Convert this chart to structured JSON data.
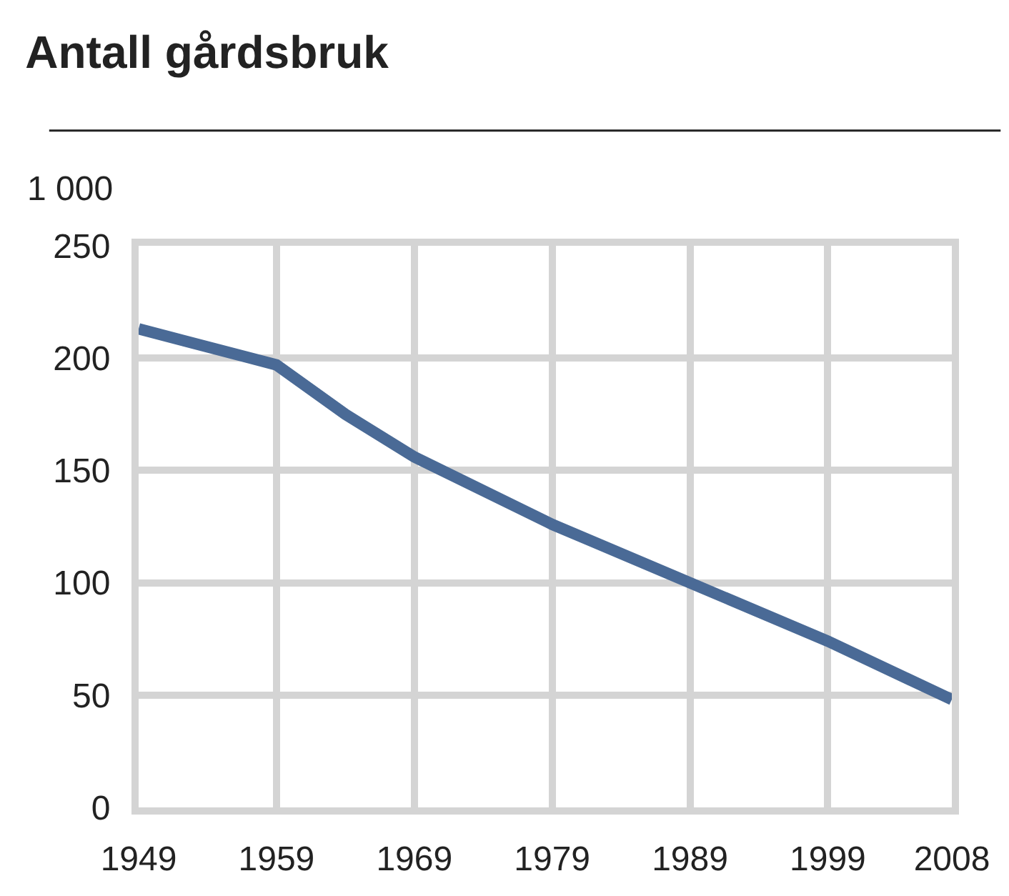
{
  "chart_data": {
    "type": "line",
    "title": "Antall gårdsbruk",
    "ylabel": "1 000",
    "x": [
      1949,
      1959,
      1964,
      1969,
      1979,
      1989,
      1999,
      2008
    ],
    "series": [
      {
        "color": "#4a6a96",
        "values": [
          213,
          197,
          175,
          156,
          126,
          100,
          74,
          48
        ]
      }
    ],
    "xlim": [
      1949,
      2008
    ],
    "xticks": [
      1949,
      1959,
      1969,
      1979,
      1989,
      1999,
      2008
    ],
    "ylim": [
      0,
      250
    ],
    "yticks": [
      0,
      50,
      100,
      150,
      200,
      250
    ],
    "grid": true,
    "legend": false,
    "marker": "none",
    "line_style": "solid"
  }
}
